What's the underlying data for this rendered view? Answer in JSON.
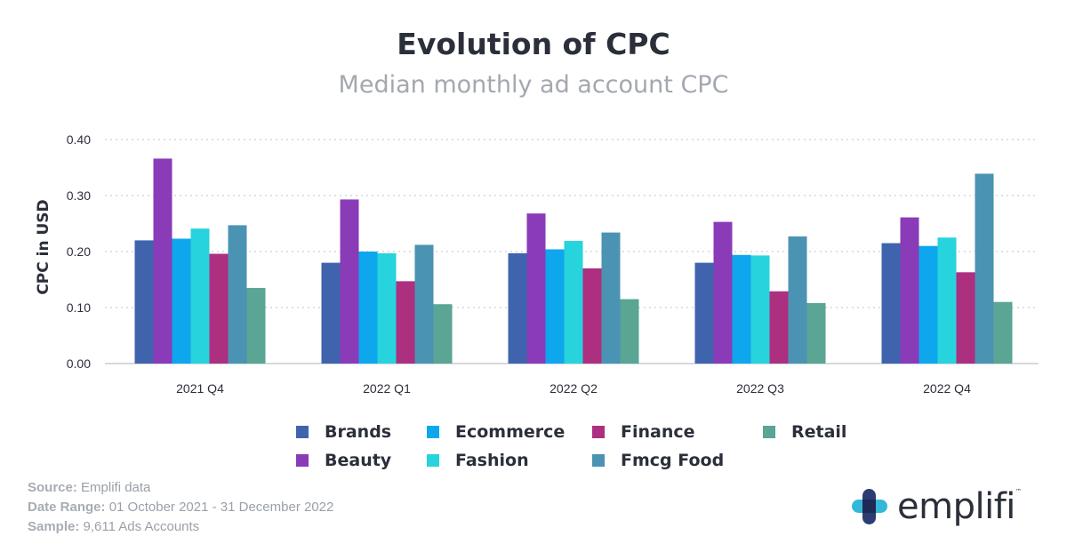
{
  "title": "Evolution of CPC",
  "subtitle": "Median monthly ad account CPC",
  "footer": {
    "source_key": "Source:",
    "source_val": "Emplifi data",
    "range_key": "Date Range:",
    "range_val": "01 October 2021 - 31 December 2022",
    "sample_key": "Sample:",
    "sample_val": "9,611 Ads Accounts"
  },
  "logo": {
    "text": "emplifi",
    "tm": "™"
  },
  "chart_data": {
    "type": "bar",
    "title": "Evolution of CPC",
    "subtitle": "Median monthly ad account CPC",
    "xlabel": "",
    "ylabel": "CPC in USD",
    "ylim": [
      0,
      0.4
    ],
    "yticks": [
      "0.00",
      "0.10",
      "0.20",
      "0.30",
      "0.40"
    ],
    "grid": true,
    "legend_position": "bottom",
    "categories": [
      "2021 Q4",
      "2022 Q1",
      "2022 Q2",
      "2022 Q3",
      "2022 Q4"
    ],
    "series": [
      {
        "name": "Brands",
        "color": "#3f63ad",
        "values": [
          0.22,
          0.18,
          0.197,
          0.18,
          0.215
        ]
      },
      {
        "name": "Beauty",
        "color": "#8a3bb8",
        "values": [
          0.366,
          0.293,
          0.268,
          0.253,
          0.261
        ]
      },
      {
        "name": "Ecommerce",
        "color": "#0ea7ee",
        "values": [
          0.223,
          0.2,
          0.204,
          0.194,
          0.21
        ]
      },
      {
        "name": "Fashion",
        "color": "#27d3dc",
        "values": [
          0.241,
          0.197,
          0.219,
          0.193,
          0.225
        ]
      },
      {
        "name": "Finance",
        "color": "#ad2f7f",
        "values": [
          0.196,
          0.147,
          0.17,
          0.129,
          0.163
        ]
      },
      {
        "name": "Fmcg Food",
        "color": "#4b93b3",
        "values": [
          0.247,
          0.212,
          0.234,
          0.227,
          0.339
        ]
      },
      {
        "name": "Retail",
        "color": "#5aa594",
        "values": [
          0.135,
          0.106,
          0.115,
          0.108,
          0.11
        ]
      }
    ]
  }
}
